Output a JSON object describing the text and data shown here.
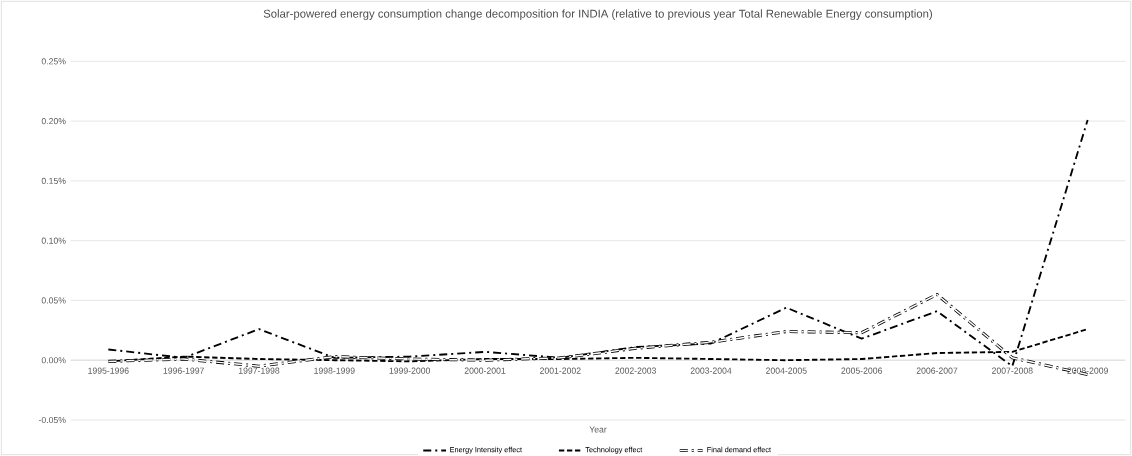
{
  "chart_data": {
    "type": "line",
    "title": "Solar-powered energy consumption  change decomposition  for INDIA (relative to previous year Total Renewable Energy consumption)",
    "xlabel": "Year",
    "categories": [
      "1995-1996",
      "1996-1997",
      "1997-1998",
      "1998-1999",
      "1999-2000",
      "2000-2001",
      "2001-2002",
      "2002-2003",
      "2003-2004",
      "2004-2005",
      "2005-2006",
      "2006-2007",
      "2007-2008",
      "2008-2009"
    ],
    "series": [
      {
        "name": "Energy Intensity effect",
        "color": "#000000",
        "line_style": "dashdot",
        "values": [
          0.009,
          0.002,
          0.026,
          0.002,
          0.003,
          0.007,
          0.002,
          0.011,
          0.014,
          0.044,
          0.018,
          0.041,
          -0.005,
          0.201
        ]
      },
      {
        "name": "Technology effect",
        "color": "#000000",
        "line_style": "dashed",
        "values": [
          -0.001,
          0.003,
          0.001,
          0.0,
          -0.001,
          0.001,
          0.001,
          0.002,
          0.001,
          0.0,
          0.001,
          0.006,
          0.007,
          0.026
        ]
      },
      {
        "name": "Final demand  effect",
        "color": "#000000",
        "line_style": "dashdot-double",
        "values": [
          -0.001,
          0.001,
          -0.005,
          0.003,
          0.001,
          0.0,
          0.002,
          0.01,
          0.015,
          0.024,
          0.023,
          0.055,
          0.002,
          -0.012
        ]
      }
    ],
    "ylim": [
      -0.05,
      0.25
    ],
    "yticks": [
      {
        "value": -0.05,
        "label": "-0.05%"
      },
      {
        "value": 0.0,
        "label": "0.00%"
      },
      {
        "value": 0.05,
        "label": "0.05%"
      },
      {
        "value": 0.1,
        "label": "0.10%"
      },
      {
        "value": 0.15,
        "label": "0.15%"
      },
      {
        "value": 0.2,
        "label": "0.20%"
      },
      {
        "value": 0.25,
        "label": "0.25%"
      }
    ],
    "grid": "y",
    "legend": "bottom"
  }
}
